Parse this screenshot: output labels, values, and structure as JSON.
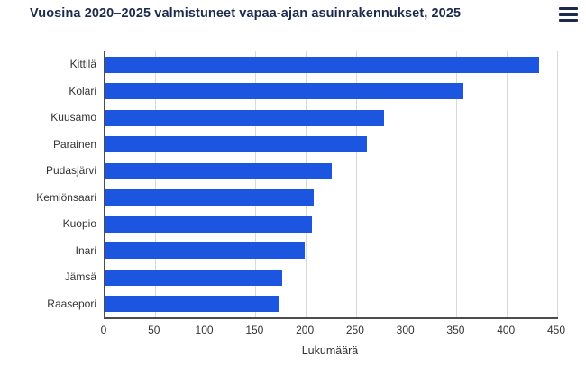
{
  "header": {
    "title": "Vuosina 2020–2025 valmistuneet vapaa-ajan asuinrakennukset, 2025",
    "menu_icon": "hamburger-menu-icon"
  },
  "colors": {
    "bar": "#1c55e0",
    "title_text": "#1c2b4d",
    "axis_line": "#4d4d4d",
    "gridline": "#d9d9d9",
    "tick_text": "#333333",
    "background": "#ffffff"
  },
  "chart_data": {
    "type": "bar",
    "orientation": "horizontal",
    "title": "Vuosina 2020–2025 valmistuneet vapaa-ajan asuinrakennukset, 2025",
    "categories": [
      "Kittilä",
      "Kolari",
      "Kuusamo",
      "Parainen",
      "Pudasjärvi",
      "Kemiönsaari",
      "Kuopio",
      "Inari",
      "Jämsä",
      "Raasepori"
    ],
    "values": [
      431,
      356,
      277,
      260,
      225,
      207,
      205,
      198,
      176,
      173
    ],
    "xlabel": "Lukumäärä",
    "ylabel": "",
    "xlim": [
      0,
      450
    ],
    "xticks": [
      0,
      50,
      100,
      150,
      200,
      250,
      300,
      350,
      400,
      450
    ],
    "grid": true,
    "legend": false
  }
}
